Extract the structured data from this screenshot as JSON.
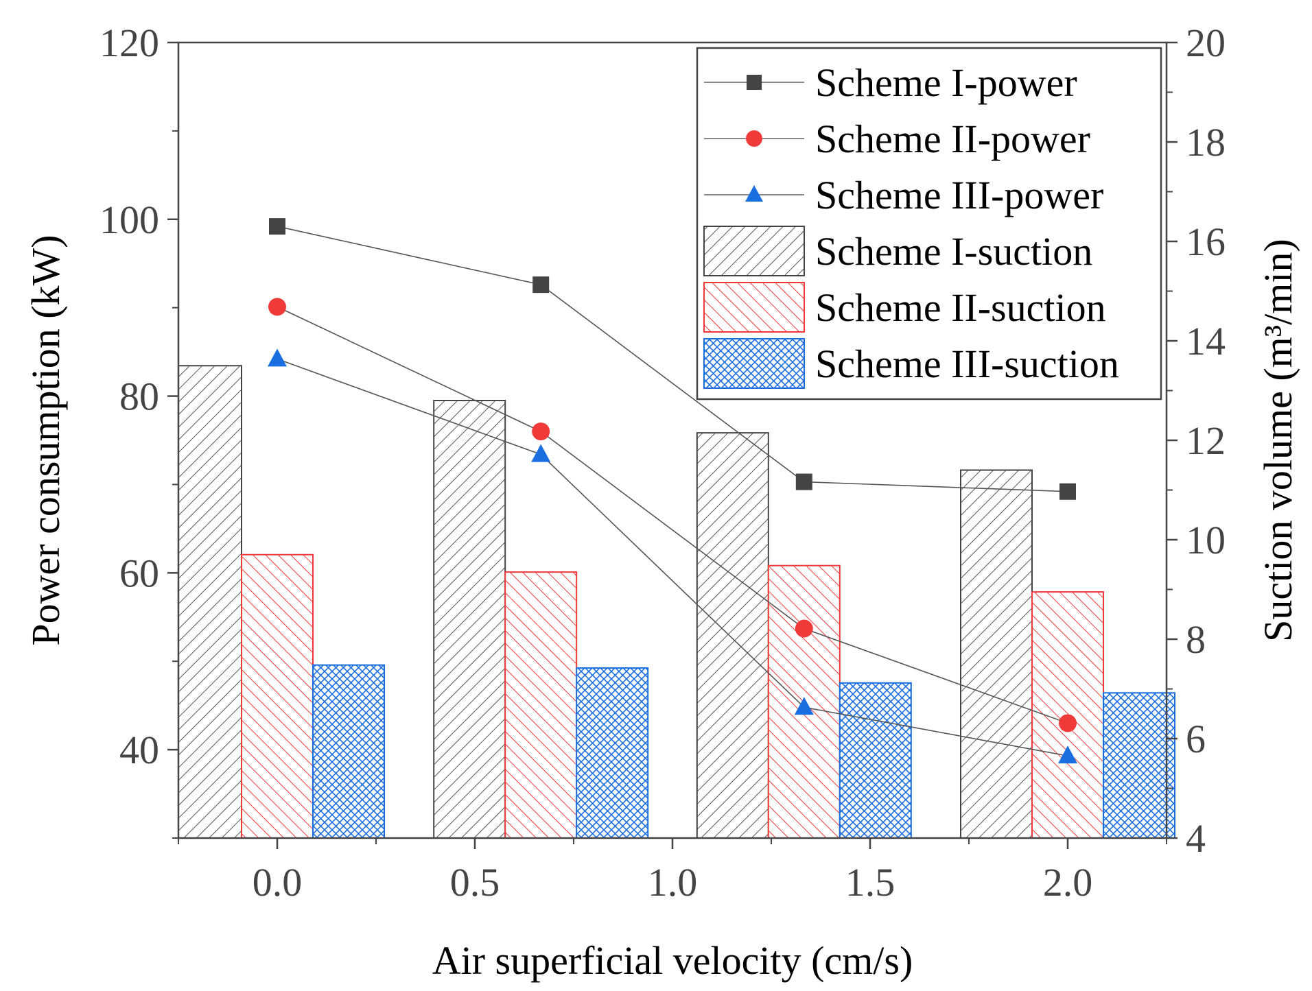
{
  "chart_data": {
    "type": "bar",
    "xlabel": "Air superficial velocity (cm/s)",
    "ylabel_left": "Power consumption (kW)",
    "ylabel_right": "Suction volume (m³/min)",
    "x_ticks": [
      "0.0",
      "0.5",
      "1.0",
      "1.5",
      "2.0"
    ],
    "x_tick_values": [
      0,
      0.5,
      1.0,
      1.5,
      2.0
    ],
    "xlim": [
      -0.25,
      2.25
    ],
    "ylim_left": [
      30,
      120
    ],
    "ylim_right": [
      4,
      20
    ],
    "y_left_ticks": [
      "40",
      "60",
      "80",
      "100",
      "120"
    ],
    "y_right_ticks": [
      "4",
      "6",
      "8",
      "10",
      "12",
      "14",
      "16",
      "18",
      "20"
    ],
    "x": [
      0,
      0.667,
      1.333,
      2.0
    ],
    "power_series": [
      {
        "name": "Scheme I-power",
        "values": [
          99.2,
          92.6,
          70.3,
          69.2
        ],
        "marker": "square",
        "color": "#444444"
      },
      {
        "name": "Scheme II-power",
        "values": [
          90.1,
          76.0,
          53.7,
          43.0
        ],
        "marker": "circle",
        "color": "#f03a3a"
      },
      {
        "name": "Scheme III-power",
        "values": [
          84.2,
          73.4,
          44.8,
          39.3
        ],
        "marker": "triangle",
        "color": "#1a6fe0"
      }
    ],
    "suction_series": [
      {
        "name": "Scheme I-suction",
        "values": [
          13.5,
          12.8,
          12.15,
          11.4
        ],
        "pattern": "diagonal",
        "color": "#444444"
      },
      {
        "name": "Scheme II-suction",
        "values": [
          9.7,
          9.35,
          9.48,
          8.95
        ],
        "pattern": "back-diagonal",
        "color": "#f03a3a"
      },
      {
        "name": "Scheme III-suction",
        "values": [
          7.48,
          7.42,
          7.12,
          6.92
        ],
        "pattern": "crosshatch",
        "color": "#1a6fe0"
      }
    ],
    "legend_position": "top-right",
    "grid": false
  }
}
